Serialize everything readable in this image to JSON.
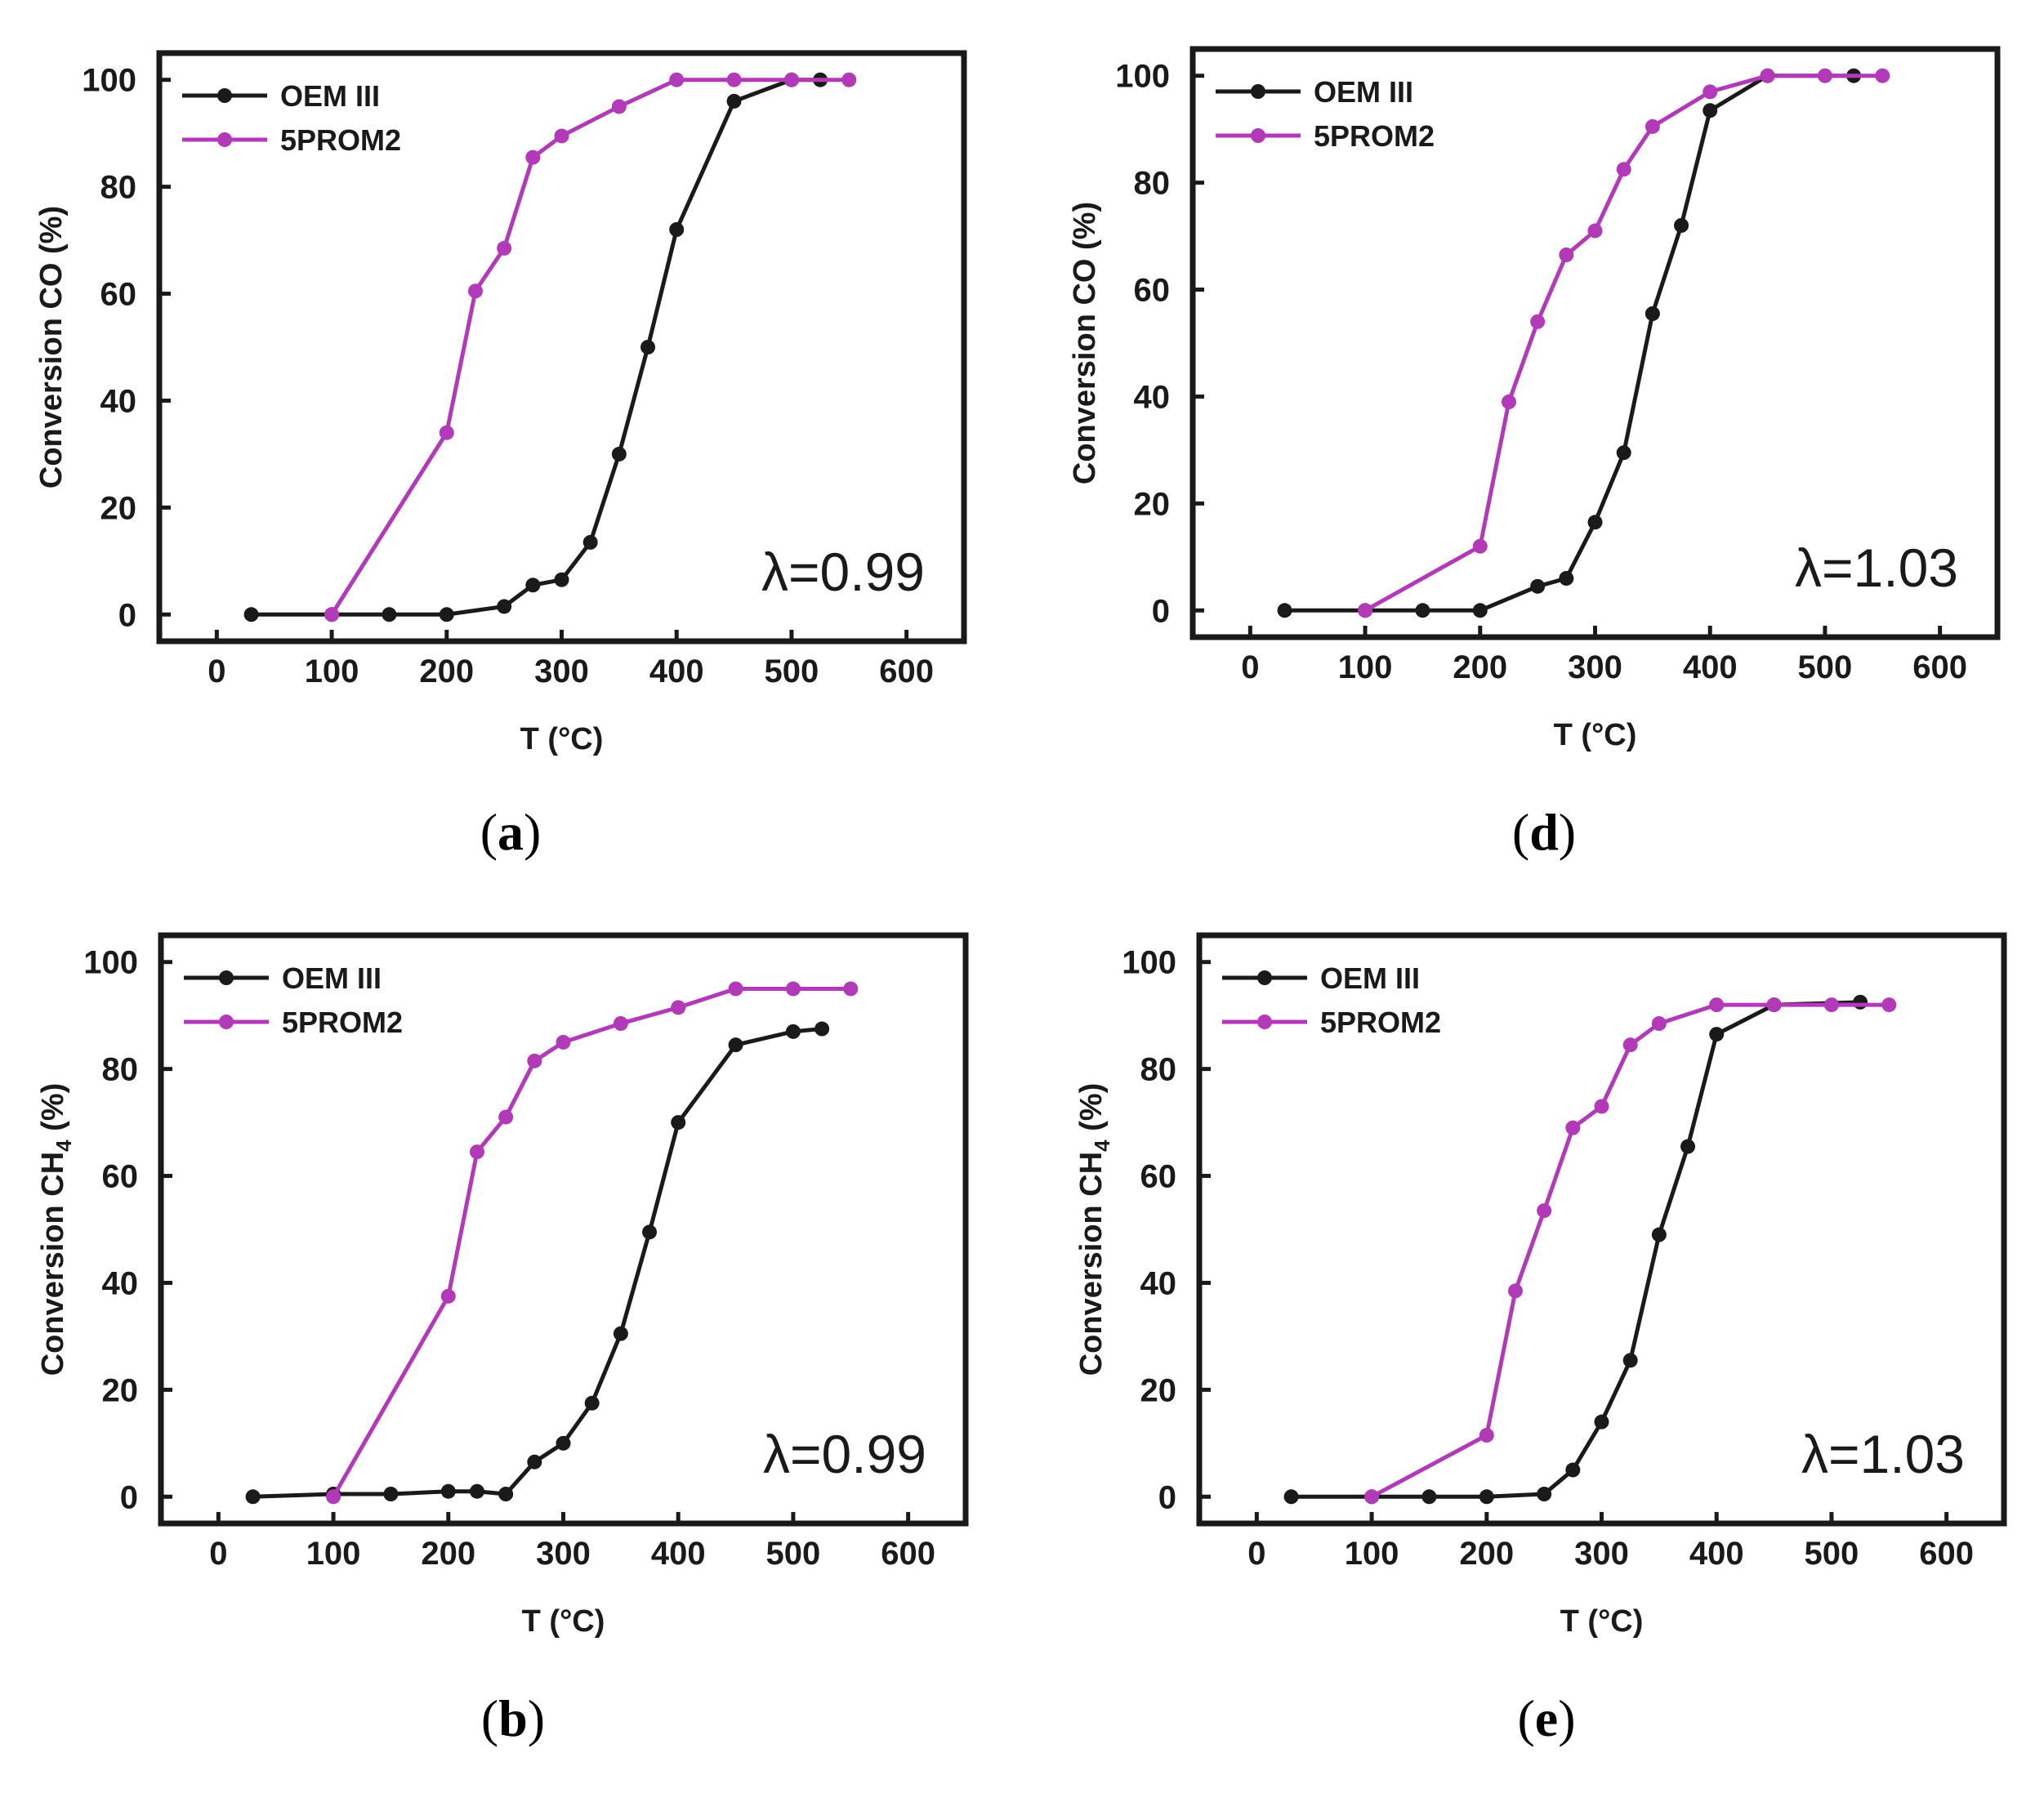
{
  "colors": {
    "series_oem": "#1a1a1a",
    "series_5prom": "#b23ab8",
    "frame": "#1a1a1a"
  },
  "chart_data": [
    {
      "id": "a",
      "panel_label": "a",
      "type": "line",
      "ylabel": "Conversion CO (%)",
      "ylabel_sub": "",
      "xlabel": "T (°C)",
      "xlim": [
        -50,
        650
      ],
      "ylim": [
        -5,
        105
      ],
      "xticks": [
        0,
        100,
        200,
        300,
        400,
        500,
        600
      ],
      "yticks": [
        0,
        20,
        40,
        60,
        80,
        100
      ],
      "annotation": "λ=0.99",
      "legend_position": "top-left",
      "series": [
        {
          "name": "OEM III",
          "color": "#1a1a1a",
          "x": [
            30,
            100,
            150,
            200,
            250,
            275,
            300,
            325,
            350,
            375,
            400,
            450,
            500,
            525
          ],
          "y": [
            0,
            0,
            0,
            0,
            1.5,
            5.5,
            6.5,
            13.5,
            30,
            50,
            72,
            96,
            100,
            100
          ]
        },
        {
          "name": "5PROM2",
          "color": "#b23ab8",
          "x": [
            100,
            200,
            225,
            250,
            275,
            300,
            350,
            400,
            450,
            500,
            550
          ],
          "y": [
            0,
            34,
            60.5,
            68.5,
            85.5,
            89.5,
            95,
            100,
            100,
            100,
            100
          ]
        }
      ]
    },
    {
      "id": "d",
      "panel_label": "d",
      "type": "line",
      "ylabel": "Conversion CO (%)",
      "ylabel_sub": "",
      "xlabel": "T (°C)",
      "xlim": [
        -50,
        650
      ],
      "ylim": [
        -5,
        105
      ],
      "xticks": [
        0,
        100,
        200,
        300,
        400,
        500,
        600
      ],
      "yticks": [
        0,
        20,
        40,
        60,
        80,
        100
      ],
      "annotation": "λ=1.03",
      "legend_position": "top-left",
      "series": [
        {
          "name": "OEM III",
          "color": "#1a1a1a",
          "x": [
            30,
            100,
            150,
            200,
            250,
            275,
            300,
            325,
            350,
            375,
            400,
            450,
            525
          ],
          "y": [
            0,
            0,
            0,
            0,
            4.5,
            6,
            16.5,
            29.5,
            55.5,
            72,
            93.5,
            100,
            100
          ]
        },
        {
          "name": "5PROM2",
          "color": "#b23ab8",
          "x": [
            100,
            200,
            225,
            250,
            275,
            300,
            325,
            350,
            400,
            450,
            500,
            550
          ],
          "y": [
            0,
            12,
            39,
            54,
            66.5,
            71,
            82.5,
            90.5,
            97,
            100,
            100,
            100
          ]
        }
      ]
    },
    {
      "id": "b",
      "panel_label": "b",
      "type": "line",
      "ylabel": "Conversion CH",
      "ylabel_sub": "4",
      "ylabel_suffix": " (%)",
      "xlabel": "T (°C)",
      "xlim": [
        -50,
        650
      ],
      "ylim": [
        -5,
        105
      ],
      "xticks": [
        0,
        100,
        200,
        300,
        400,
        500,
        600
      ],
      "yticks": [
        0,
        20,
        40,
        60,
        80,
        100
      ],
      "annotation": "λ=0.99",
      "legend_position": "top-left",
      "series": [
        {
          "name": "OEM III",
          "color": "#1a1a1a",
          "x": [
            30,
            100,
            150,
            200,
            225,
            250,
            275,
            300,
            325,
            350,
            375,
            400,
            450,
            500,
            525
          ],
          "y": [
            0,
            0.5,
            0.5,
            1,
            1,
            0.5,
            6.5,
            10,
            17.5,
            30.5,
            49.5,
            70,
            84.5,
            87,
            87.5
          ]
        },
        {
          "name": "5PROM2",
          "color": "#b23ab8",
          "x": [
            100,
            200,
            225,
            250,
            275,
            300,
            350,
            400,
            450,
            500,
            550
          ],
          "y": [
            0,
            37.5,
            64.5,
            71,
            81.5,
            85,
            88.5,
            91.5,
            95,
            95,
            95
          ]
        }
      ]
    },
    {
      "id": "e",
      "panel_label": "e",
      "type": "line",
      "ylabel": "Conversion CH",
      "ylabel_sub": "4",
      "ylabel_suffix": " (%)",
      "xlabel": "T (°C)",
      "xlim": [
        -50,
        650
      ],
      "ylim": [
        -5,
        105
      ],
      "xticks": [
        0,
        100,
        200,
        300,
        400,
        500,
        600
      ],
      "yticks": [
        0,
        20,
        40,
        60,
        80,
        100
      ],
      "annotation": "λ=1.03",
      "legend_position": "top-left",
      "series": [
        {
          "name": "OEM III",
          "color": "#1a1a1a",
          "x": [
            30,
            100,
            150,
            200,
            250,
            275,
            300,
            325,
            350,
            375,
            400,
            450,
            525
          ],
          "y": [
            0,
            0,
            0,
            0,
            0.5,
            5,
            14,
            25.5,
            49,
            65.5,
            86.5,
            92,
            92.5
          ]
        },
        {
          "name": "5PROM2",
          "color": "#b23ab8",
          "x": [
            100,
            200,
            225,
            250,
            275,
            300,
            325,
            350,
            400,
            450,
            500,
            550
          ],
          "y": [
            0,
            11.5,
            38.5,
            53.5,
            69,
            73,
            84.5,
            88.5,
            92,
            92,
            92,
            92
          ]
        }
      ]
    }
  ]
}
